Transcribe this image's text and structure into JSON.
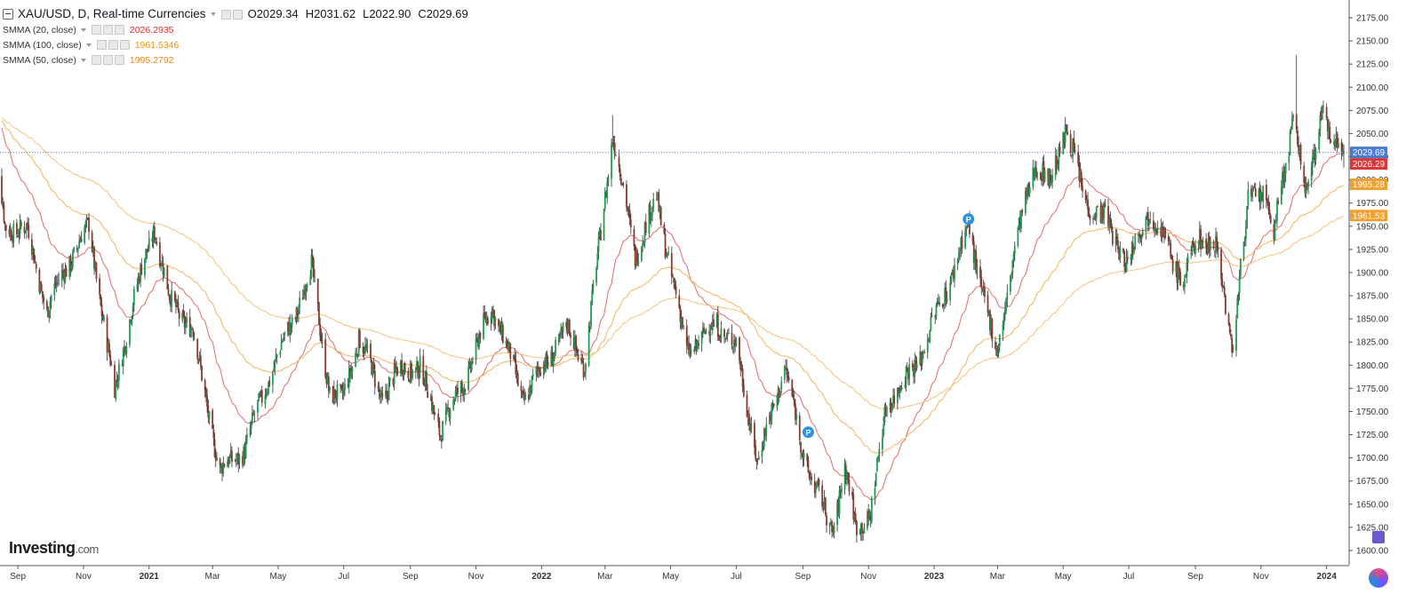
{
  "header": {
    "symbol": "XAU/USD, D, Real-time Currencies",
    "open_label": "O",
    "open": "2029.34",
    "high_label": "H",
    "high": "2031.62",
    "low_label": "L",
    "low": "2022.90",
    "close_label": "C",
    "close": "2029.69"
  },
  "indicators": [
    {
      "name": "SMMA (20, close)",
      "value": "2026.2935",
      "color": "#e0393e"
    },
    {
      "name": "SMMA (100, close)",
      "value": "1961.5346",
      "color": "#f0a030"
    },
    {
      "name": "SMMA (50, close)",
      "value": "1995.2792",
      "color": "#e08a1e"
    }
  ],
  "brand": {
    "name": "Investing",
    "suffix": ".com"
  },
  "colors": {
    "up": "#1f9d55",
    "down": "#8b3a2e",
    "grid": "#ffffff",
    "price_line": "#5b7fc7"
  },
  "chart_data": {
    "type": "candlestick",
    "title": "XAU/USD, D, Real-time Currencies",
    "ylim": [
      1600,
      2175
    ],
    "y_ticks": [
      "1600.00",
      "1625.00",
      "1650.00",
      "1675.00",
      "1700.00",
      "1725.00",
      "1750.00",
      "1775.00",
      "1800.00",
      "1825.00",
      "1850.00",
      "1875.00",
      "1900.00",
      "1925.00",
      "1950.00",
      "1975.00",
      "2000.00",
      "2025.00",
      "2050.00",
      "2075.00",
      "2100.00",
      "2125.00",
      "2150.00",
      "2175.00"
    ],
    "x_ticks": [
      "Sep",
      "Nov",
      "2021",
      "Mar",
      "May",
      "Jul",
      "Sep",
      "Nov",
      "2022",
      "Mar",
      "May",
      "Jul",
      "Sep",
      "Nov",
      "2023",
      "Mar",
      "May",
      "Jul",
      "Sep",
      "Nov",
      "2024"
    ],
    "x_range": [
      "2020-08-17",
      "2024-01-17"
    ],
    "price_anchors": [
      [
        "2020-08-07",
        2070
      ],
      [
        "2020-08-20",
        1950
      ],
      [
        "2020-09-10",
        1945
      ],
      [
        "2020-09-28",
        1860
      ],
      [
        "2020-10-15",
        1905
      ],
      [
        "2020-11-06",
        1950
      ],
      [
        "2020-11-30",
        1770
      ],
      [
        "2020-12-15",
        1860
      ],
      [
        "2021-01-06",
        1950
      ],
      [
        "2021-01-20",
        1870
      ],
      [
        "2021-02-10",
        1840
      ],
      [
        "2021-03-08",
        1685
      ],
      [
        "2021-03-31",
        1710
      ],
      [
        "2021-04-20",
        1780
      ],
      [
        "2021-05-15",
        1850
      ],
      [
        "2021-06-01",
        1905
      ],
      [
        "2021-06-18",
        1770
      ],
      [
        "2021-06-29",
        1760
      ],
      [
        "2021-07-15",
        1830
      ],
      [
        "2021-08-06",
        1765
      ],
      [
        "2021-08-25",
        1800
      ],
      [
        "2021-09-10",
        1795
      ],
      [
        "2021-09-29",
        1730
      ],
      [
        "2021-10-20",
        1780
      ],
      [
        "2021-11-16",
        1865
      ],
      [
        "2021-12-15",
        1765
      ],
      [
        "2022-01-25",
        1840
      ],
      [
        "2022-02-10",
        1800
      ],
      [
        "2022-03-08",
        2050
      ],
      [
        "2022-03-29",
        1920
      ],
      [
        "2022-04-18",
        1980
      ],
      [
        "2022-05-16",
        1815
      ],
      [
        "2022-06-13",
        1845
      ],
      [
        "2022-07-01",
        1820
      ],
      [
        "2022-07-21",
        1695
      ],
      [
        "2022-08-15",
        1800
      ],
      [
        "2022-09-01",
        1705
      ],
      [
        "2022-09-28",
        1620
      ],
      [
        "2022-10-10",
        1690
      ],
      [
        "2022-10-20",
        1625
      ],
      [
        "2022-11-03",
        1640
      ],
      [
        "2022-11-18",
        1760
      ],
      [
        "2022-12-15",
        1800
      ],
      [
        "2023-01-10",
        1875
      ],
      [
        "2023-02-02",
        1950
      ],
      [
        "2023-02-28",
        1810
      ],
      [
        "2023-03-16",
        1920
      ],
      [
        "2023-04-05",
        2020
      ],
      [
        "2023-04-19",
        1995
      ],
      [
        "2023-05-04",
        2060
      ],
      [
        "2023-05-20",
        1980
      ],
      [
        "2023-06-08",
        1960
      ],
      [
        "2023-06-30",
        1910
      ],
      [
        "2023-07-20",
        1970
      ],
      [
        "2023-08-21",
        1890
      ],
      [
        "2023-09-04",
        1940
      ],
      [
        "2023-09-20",
        1930
      ],
      [
        "2023-10-05",
        1820
      ],
      [
        "2023-10-20",
        1975
      ],
      [
        "2023-11-03",
        1990
      ],
      [
        "2023-11-13",
        1940
      ],
      [
        "2023-12-01",
        2070
      ],
      [
        "2023-12-13",
        1980
      ],
      [
        "2023-12-27",
        2078
      ],
      [
        "2024-01-05",
        2045
      ],
      [
        "2024-01-17",
        2029.69
      ]
    ],
    "spikes": [
      {
        "date": "2023-12-04",
        "high": 2135
      },
      {
        "date": "2022-03-08",
        "high": 2070
      },
      {
        "date": "2020-08-07",
        "high": 2075
      }
    ],
    "markers": [
      {
        "date": "2023-02-02",
        "price": 1950,
        "label": "P"
      },
      {
        "date": "2022-09-06",
        "price": 1720,
        "label": "P"
      }
    ],
    "series": [
      {
        "name": "SMMA (20, close)",
        "period": 20,
        "last": 2026.29
      },
      {
        "name": "SMMA (50, close)",
        "period": 50,
        "last": 1995.28
      },
      {
        "name": "SMMA (100, close)",
        "period": 100,
        "last": 1961.53
      }
    ],
    "last_price": 2029.69,
    "badges": [
      {
        "value": "2029.69",
        "price": 2029.69,
        "color": "#4a7bd0"
      },
      {
        "value": "2026.29",
        "price": 2026.29,
        "color": "#d93636"
      },
      {
        "value": "1995.28",
        "price": 1995.28,
        "color": "#f0a030"
      },
      {
        "value": "1961.53",
        "price": 1961.53,
        "color": "#f0a030"
      }
    ]
  }
}
